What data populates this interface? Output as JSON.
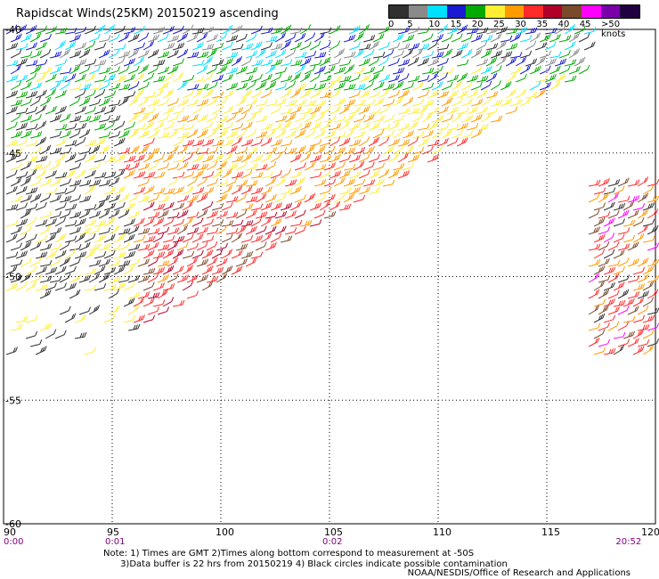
{
  "title": "Rapidscat Winds(25KM) 20150219 ascending",
  "legend": {
    "colors": [
      "#303030",
      "#8a8a8a",
      "#00e0ff",
      "#1a1ad0",
      "#00aa00",
      "#ffee33",
      "#ff9a00",
      "#ff2a2a",
      "#b0002a",
      "#7a4a2a",
      "#ff00ff",
      "#7a00aa",
      "#200040"
    ],
    "ticks": [
      "0",
      "5",
      "10",
      "15",
      "20",
      "25",
      "30",
      "35",
      "40",
      "45",
      ">50 knots"
    ]
  },
  "axes": {
    "lon_labels": [
      "90",
      "95",
      "100",
      "105",
      "110",
      "115",
      "120"
    ],
    "lat_labels": [
      "-40",
      "-45",
      "-50",
      "-55",
      "-60"
    ],
    "time_labels": [
      {
        "lon": 90,
        "text": "0:00"
      },
      {
        "lon": 95,
        "text": "0:01"
      },
      {
        "lon": 105,
        "text": "0:02"
      },
      {
        "lon": 118.5,
        "text": "20:52"
      }
    ]
  },
  "notes": {
    "line1": "Note: 1) Times are GMT 2)Times along bottom correspond to measurement at -50S",
    "line2": "      3)Data buffer is 22 hrs from 20150219 4) Black circles indicate possible contamination"
  },
  "credit": "NOAA/NESDIS/Office of Research and Applications"
}
